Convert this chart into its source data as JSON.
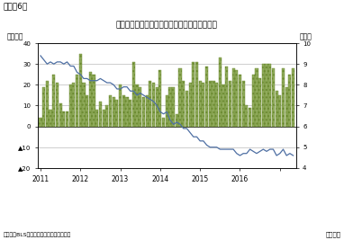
{
  "title": "米国の雇用動向（非農業部門雇用増と失業率）",
  "figure_label": "（図表6）",
  "ylabel_left": "（万人）",
  "ylabel_right": "（％）",
  "xlabel": "（月次）",
  "source": "（資料）BLSよりニッセイ基礎研究所作成",
  "ylim_left": [
    -20,
    40
  ],
  "ylim_right": [
    4,
    10
  ],
  "yticks_left": [
    -20,
    -10,
    0,
    10,
    20,
    30,
    40
  ],
  "yticks_left_labels": [
    "▲20",
    "▲10",
    "0",
    "10",
    "20",
    "30",
    "40"
  ],
  "yticks_right": [
    4,
    5,
    6,
    7,
    8,
    9,
    10
  ],
  "bar_color": "#8faa5a",
  "bar_edge_color": "#6b8a30",
  "line_color": "#4e6fa3",
  "bar_data": [
    4,
    19,
    22,
    8,
    25,
    21,
    11,
    7,
    7,
    20,
    21,
    25,
    35,
    21,
    15,
    26,
    25,
    8,
    12,
    8,
    10,
    15,
    14,
    13,
    20,
    15,
    14,
    13,
    31,
    20,
    19,
    14,
    15,
    22,
    21,
    19,
    27,
    4,
    15,
    19,
    19,
    6,
    28,
    22,
    17,
    21,
    31,
    31,
    22,
    21,
    29,
    22,
    22,
    21,
    33,
    20,
    29,
    22,
    28,
    27,
    25,
    22,
    10,
    9,
    25,
    28,
    23,
    30,
    30,
    30,
    28,
    17,
    15,
    28,
    19,
    25,
    28
  ],
  "unemployment_data": [
    9.4,
    9.2,
    9.0,
    9.1,
    9.0,
    9.1,
    9.1,
    9.0,
    9.1,
    8.9,
    8.9,
    8.6,
    8.5,
    8.3,
    8.3,
    8.2,
    8.2,
    8.2,
    8.3,
    8.2,
    8.1,
    8.1,
    8.0,
    7.8,
    7.8,
    7.9,
    7.9,
    7.7,
    7.7,
    7.5,
    7.6,
    7.5,
    7.4,
    7.3,
    7.2,
    7.0,
    6.7,
    6.6,
    6.7,
    6.3,
    6.1,
    6.2,
    6.1,
    5.9,
    5.9,
    5.7,
    5.5,
    5.5,
    5.3,
    5.3,
    5.1,
    5.0,
    5.0,
    5.0,
    4.9,
    4.9,
    4.9,
    4.9,
    4.9,
    4.7,
    4.6,
    4.7,
    4.7,
    4.9,
    4.8,
    4.7,
    4.8,
    4.9,
    4.8,
    4.9,
    4.9,
    4.6,
    4.7,
    4.9,
    4.6,
    4.7,
    4.6
  ],
  "x_tick_positions": [
    0,
    12,
    24,
    36,
    48,
    60,
    72
  ],
  "x_tick_labels": [
    "2011",
    "2012",
    "2013",
    "2014",
    "2015",
    "2016",
    ""
  ],
  "bg_color": "#f0f0f0"
}
